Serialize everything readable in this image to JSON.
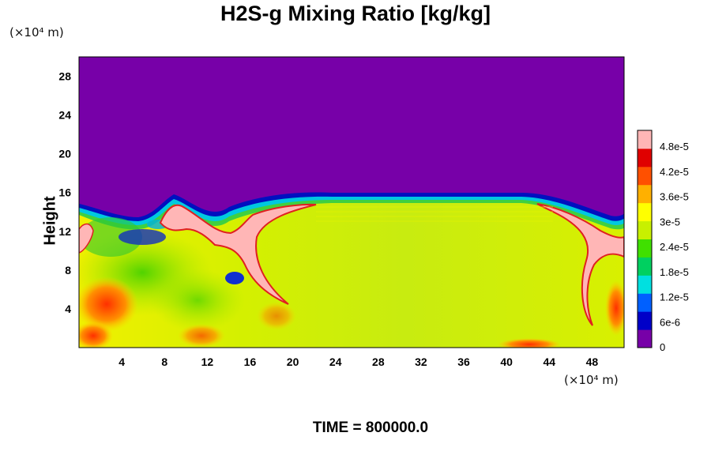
{
  "chart_data": {
    "type": "heatmap",
    "title": "H2S-g Mixing Ratio [kg/kg]",
    "ylabel": "Height",
    "xlabel": "",
    "x_unit": "(×10⁴ m)",
    "y_unit": "(×10⁴ m)",
    "x_ticks": [
      4,
      8,
      12,
      16,
      20,
      24,
      28,
      32,
      36,
      40,
      44,
      48
    ],
    "y_ticks": [
      4,
      8,
      12,
      16,
      20,
      24,
      28
    ],
    "xlim": [
      0,
      51
    ],
    "ylim": [
      0,
      30
    ],
    "colorbar": {
      "min": 0,
      "max": 5.2e-05,
      "tick_values": [
        0,
        6e-06,
        1.2e-05,
        1.8e-05,
        2.4e-05,
        3e-05,
        3.6e-05,
        4.2e-05,
        4.8e-05
      ],
      "tick_labels": [
        "0",
        "6e-6",
        "1.2e-5",
        "1.8e-5",
        "2.4e-5",
        "3e-5",
        "3.6e-5",
        "4.2e-5",
        "4.8e-5"
      ],
      "colors": [
        "#7700a8",
        "#0000c8",
        "#0060ff",
        "#00e0e0",
        "#00d060",
        "#40e000",
        "#c8f000",
        "#ffff00",
        "#ffb000",
        "#ff5000",
        "#e00000",
        "#ffb6b6"
      ]
    },
    "background_value": 0,
    "plume_top": 15.5,
    "annotation": "TIME = 800000.0"
  }
}
